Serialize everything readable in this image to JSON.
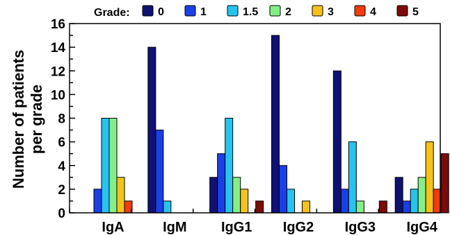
{
  "chart_data": {
    "type": "bar",
    "title": "",
    "xlabel": "",
    "ylabel": [
      "Number of patients",
      "per grade"
    ],
    "ylim": [
      0,
      16
    ],
    "y_major_ticks": [
      0,
      2,
      4,
      6,
      8,
      10,
      12,
      14,
      16
    ],
    "y_minor_step": 1,
    "grid": false,
    "legend": {
      "title": "Grade:",
      "position": "top"
    },
    "categories": [
      "IgA",
      "IgM",
      "IgG1",
      "IgG2",
      "IgG3",
      "IgG4"
    ],
    "series": [
      {
        "name": "0",
        "color": "#0f1273",
        "values": [
          0,
          14,
          3,
          15,
          12,
          3
        ]
      },
      {
        "name": "1",
        "color": "#1b3fe6",
        "values": [
          2,
          7,
          5,
          4,
          2,
          1
        ]
      },
      {
        "name": "1.5",
        "color": "#27c3ef",
        "values": [
          8,
          1,
          8,
          2,
          6,
          2
        ]
      },
      {
        "name": "2",
        "color": "#86ee86",
        "values": [
          8,
          0,
          3,
          0,
          1,
          3
        ]
      },
      {
        "name": "3",
        "color": "#f5c21b",
        "values": [
          3,
          0,
          2,
          1,
          0,
          6
        ]
      },
      {
        "name": "4",
        "color": "#f23b0f",
        "values": [
          1,
          0,
          0,
          0,
          0,
          2
        ]
      },
      {
        "name": "5",
        "color": "#7d0a0a",
        "values": [
          0,
          0,
          1,
          0,
          1,
          5
        ]
      }
    ]
  }
}
